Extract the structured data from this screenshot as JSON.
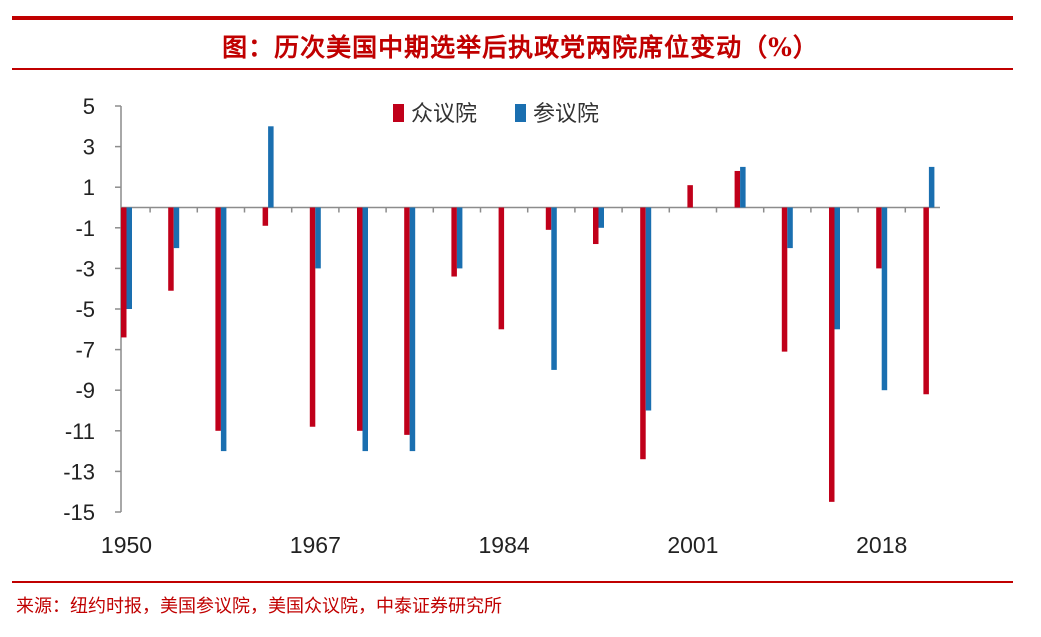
{
  "header": {
    "title": "图：历次美国中期选举后执政党两院席位变动（%）"
  },
  "footer": {
    "source": "来源：纽约时报，美国参议院，美国众议院，中泰证券研究所"
  },
  "colors": {
    "accent": "#c00000",
    "house": "#c0001a",
    "senate": "#1a6fb0"
  },
  "chart_data": {
    "type": "bar",
    "title": "",
    "xlabel": "",
    "ylabel": "",
    "ylim": [
      -15,
      5
    ],
    "yticks": [
      5,
      3,
      1,
      -1,
      -3,
      -5,
      -7,
      -9,
      -11,
      -13,
      -15
    ],
    "xtick_labels": [
      "1950",
      "1967",
      "1984",
      "2001",
      "2018"
    ],
    "xtick_category_index": [
      0,
      4,
      8,
      12,
      16
    ],
    "legend_position": "top-center",
    "grid": false,
    "categories": [
      "",
      "",
      "",
      "",
      "",
      "",
      "",
      "",
      "",
      "",
      "",
      "",
      "",
      "",
      "",
      "",
      "",
      ""
    ],
    "series": [
      {
        "name": "众议院",
        "color": "#c0001a",
        "values": [
          -6.4,
          -4.1,
          -11.0,
          -0.9,
          -10.8,
          -11.0,
          -11.2,
          -3.4,
          -6.0,
          -1.1,
          -1.8,
          -12.4,
          1.1,
          1.8,
          -7.1,
          -14.5,
          -3.0,
          -9.2
        ]
      },
      {
        "name": "参议院",
        "color": "#1a6fb0",
        "values": [
          -5.0,
          -2.0,
          -12.0,
          4.0,
          -3.0,
          -12.0,
          -12.0,
          -3.0,
          0,
          -8.0,
          -1.0,
          -10.0,
          0,
          2.0,
          -2.0,
          -6.0,
          -9.0,
          2.0
        ]
      }
    ]
  }
}
